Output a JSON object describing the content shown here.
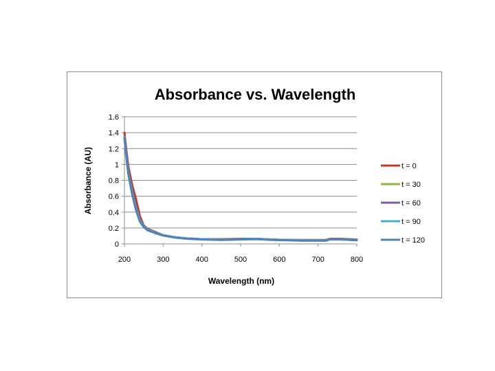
{
  "chart_data": {
    "type": "line",
    "title": "Absorbance vs. Wavelength",
    "xlabel": "Wavelength (nm)",
    "ylabel": "Absorbance (AU)",
    "xlim": [
      200,
      800
    ],
    "ylim": [
      0,
      1.6
    ],
    "xticks": [
      200,
      300,
      400,
      500,
      600,
      700,
      800
    ],
    "xtick_labels": [
      "200",
      "300",
      "400",
      "500",
      "600",
      "700",
      "800"
    ],
    "yticks": [
      0,
      0.2,
      0.4,
      0.6,
      0.8,
      1.0,
      1.2,
      1.4,
      1.6
    ],
    "ytick_labels": [
      "0",
      "0.2",
      "0.4",
      "0.6",
      "0.8",
      "1",
      "1.2",
      "1.4",
      "1.6"
    ],
    "grid": "horizontal",
    "legend_position": "right",
    "series": [
      {
        "name": "t = 0",
        "color": "#c0392b",
        "x": [
          200,
          205,
          210,
          220,
          230,
          240,
          250,
          260,
          280,
          300,
          330,
          360,
          400,
          450,
          500,
          540,
          580,
          620,
          660,
          700,
          720,
          730,
          760,
          800
        ],
        "y": [
          1.4,
          1.18,
          0.98,
          0.74,
          0.56,
          0.35,
          0.23,
          0.19,
          0.15,
          0.11,
          0.085,
          0.07,
          0.06,
          0.06,
          0.065,
          0.065,
          0.055,
          0.05,
          0.05,
          0.05,
          0.05,
          0.065,
          0.065,
          0.055
        ]
      },
      {
        "name": "t = 30",
        "color": "#8db83f",
        "x": [
          200,
          205,
          210,
          220,
          230,
          240,
          250,
          260,
          280,
          300,
          330,
          360,
          400,
          450,
          500,
          540,
          580,
          620,
          660,
          700,
          720,
          730,
          760,
          800
        ],
        "y": [
          1.35,
          1.1,
          0.9,
          0.65,
          0.45,
          0.3,
          0.22,
          0.18,
          0.14,
          0.11,
          0.085,
          0.07,
          0.06,
          0.055,
          0.06,
          0.065,
          0.055,
          0.05,
          0.045,
          0.045,
          0.045,
          0.06,
          0.06,
          0.05
        ]
      },
      {
        "name": "t = 60",
        "color": "#7d5ba6",
        "x": [
          200,
          205,
          210,
          220,
          230,
          240,
          250,
          260,
          280,
          300,
          330,
          360,
          400,
          450,
          500,
          540,
          580,
          620,
          660,
          700,
          720,
          730,
          760,
          800
        ],
        "y": [
          1.35,
          1.1,
          0.9,
          0.65,
          0.45,
          0.3,
          0.22,
          0.18,
          0.14,
          0.11,
          0.085,
          0.07,
          0.06,
          0.055,
          0.06,
          0.065,
          0.055,
          0.05,
          0.045,
          0.045,
          0.045,
          0.06,
          0.06,
          0.05
        ]
      },
      {
        "name": "t = 90",
        "color": "#4bacc6",
        "x": [
          200,
          205,
          210,
          220,
          230,
          240,
          250,
          260,
          280,
          300,
          330,
          360,
          400,
          450,
          500,
          540,
          580,
          620,
          660,
          700,
          720,
          730,
          760,
          800
        ],
        "y": [
          1.35,
          1.1,
          0.9,
          0.65,
          0.45,
          0.3,
          0.22,
          0.18,
          0.14,
          0.11,
          0.085,
          0.07,
          0.06,
          0.055,
          0.06,
          0.065,
          0.055,
          0.05,
          0.045,
          0.045,
          0.045,
          0.06,
          0.06,
          0.05
        ]
      },
      {
        "name": "t = 120",
        "color": "#4f81bd",
        "x": [
          200,
          205,
          210,
          220,
          230,
          240,
          250,
          260,
          280,
          300,
          330,
          360,
          400,
          450,
          500,
          540,
          580,
          620,
          660,
          700,
          720,
          730,
          760,
          800
        ],
        "y": [
          1.33,
          1.08,
          0.88,
          0.62,
          0.42,
          0.28,
          0.21,
          0.17,
          0.135,
          0.105,
          0.08,
          0.065,
          0.055,
          0.05,
          0.055,
          0.06,
          0.05,
          0.045,
          0.04,
          0.04,
          0.04,
          0.055,
          0.055,
          0.045
        ]
      }
    ]
  }
}
